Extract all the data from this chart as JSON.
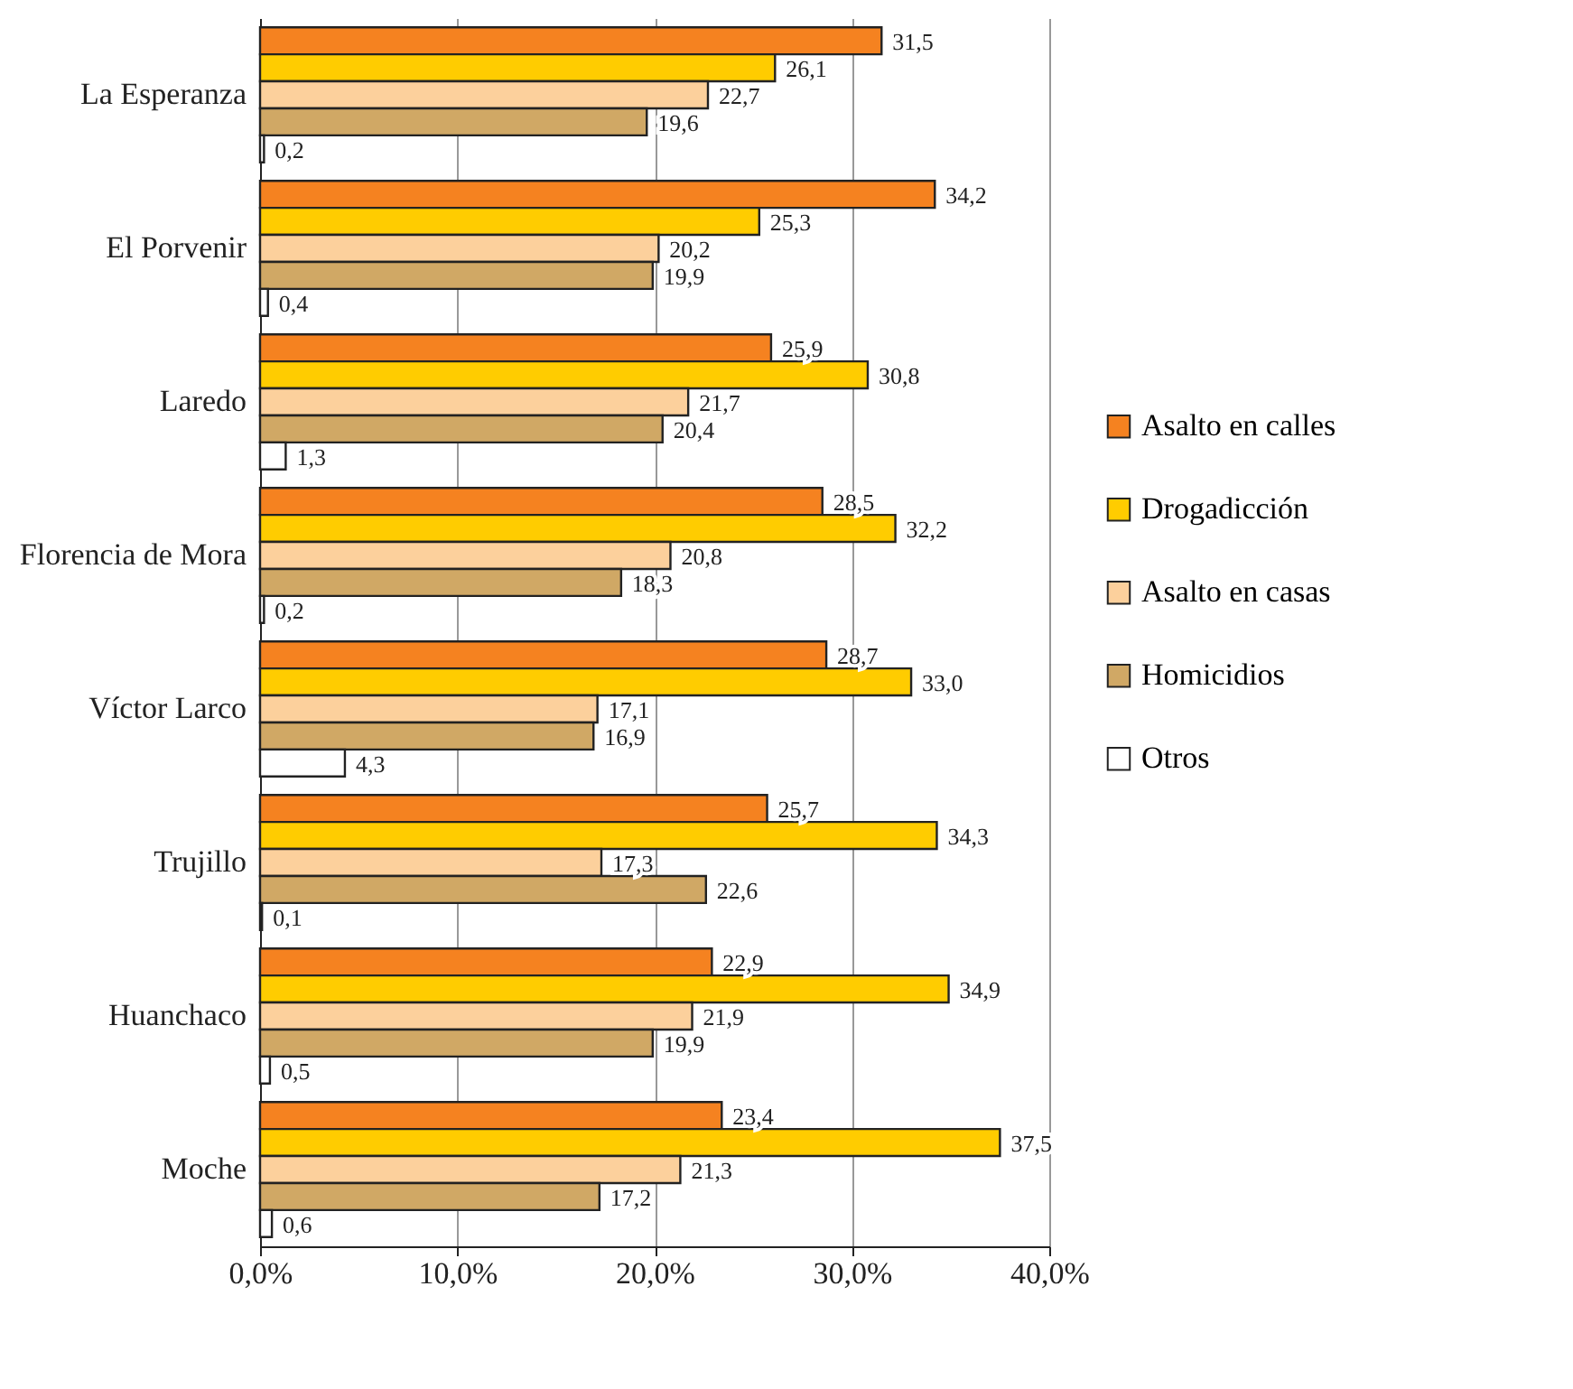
{
  "chart_data": {
    "type": "bar",
    "orientation": "horizontal",
    "categories": [
      "La Esperanza",
      "El Porvenir",
      "Laredo",
      "Florencia de Mora",
      "Víctor Larco",
      "Trujillo",
      "Huanchaco",
      "Moche"
    ],
    "series": [
      {
        "name": "Asalto en calles",
        "color": "#f58220",
        "values": [
          31.5,
          34.2,
          25.9,
          28.5,
          28.7,
          25.7,
          22.9,
          23.4
        ],
        "value_labels": [
          "31,5",
          "34,2",
          "25,9",
          "28,5",
          "28,7",
          "25,7",
          "22,9",
          "23,4"
        ]
      },
      {
        "name": "Drogadicción",
        "color": "#ffcc00",
        "values": [
          26.1,
          25.3,
          30.8,
          32.2,
          33.0,
          34.3,
          34.9,
          37.5
        ],
        "value_labels": [
          "26,1",
          "25,3",
          "30,8",
          "32,2",
          "33,0",
          "34,3",
          "34,9",
          "37,5"
        ]
      },
      {
        "name": "Asalto en casas",
        "color": "#fcd09c",
        "values": [
          22.7,
          20.2,
          21.7,
          20.8,
          17.1,
          17.3,
          21.9,
          21.3
        ],
        "value_labels": [
          "22,7",
          "20,2",
          "21,7",
          "20,8",
          "17,1",
          "17,3",
          "21,9",
          "21,3"
        ]
      },
      {
        "name": "Homicidios",
        "color": "#d0a865",
        "values": [
          19.6,
          19.9,
          20.4,
          18.3,
          16.9,
          22.6,
          19.9,
          17.2
        ],
        "value_labels": [
          "19,6",
          "19,9",
          "20,4",
          "18,3",
          "16,9",
          "22,6",
          "19,9",
          "17,2"
        ]
      },
      {
        "name": "Otros",
        "color": "#ffffff",
        "values": [
          0.2,
          0.4,
          1.3,
          0.2,
          4.3,
          0.1,
          0.5,
          0.6
        ],
        "value_labels": [
          "0,2",
          "0,4",
          "1,3",
          "0,2",
          "4,3",
          "0,1",
          "0,5",
          "0,6"
        ]
      }
    ],
    "xlim": [
      0,
      40
    ],
    "xticks": [
      {
        "value": 0,
        "label": "0,0%"
      },
      {
        "value": 10,
        "label": "10,0%"
      },
      {
        "value": 20,
        "label": "20,0%"
      },
      {
        "value": 30,
        "label": "30,0%"
      },
      {
        "value": 40,
        "label": "40,0%"
      }
    ],
    "grid": "x",
    "legend": "right"
  }
}
